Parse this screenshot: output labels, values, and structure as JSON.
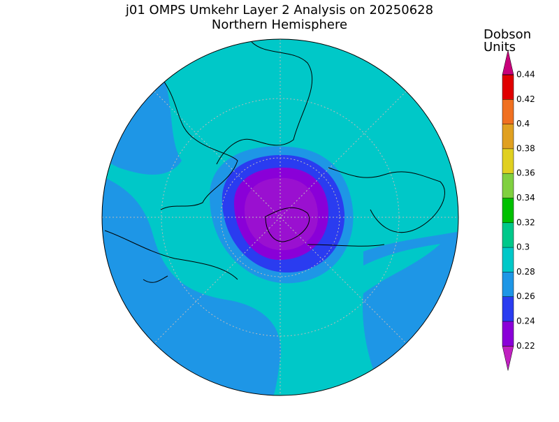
{
  "header": {
    "title": "j01 OMPS Umkehr Layer 2 Analysis on 20250628",
    "subtitle": "Northern Hemisphere"
  },
  "colorbar": {
    "label_lines": [
      "Dobson",
      "Units"
    ],
    "ticks": [
      "0.44",
      "0.42",
      "0.4",
      "0.38",
      "0.36",
      "0.34",
      "0.32",
      "0.3",
      "0.28",
      "0.26",
      "0.24",
      "0.22"
    ]
  }
}
